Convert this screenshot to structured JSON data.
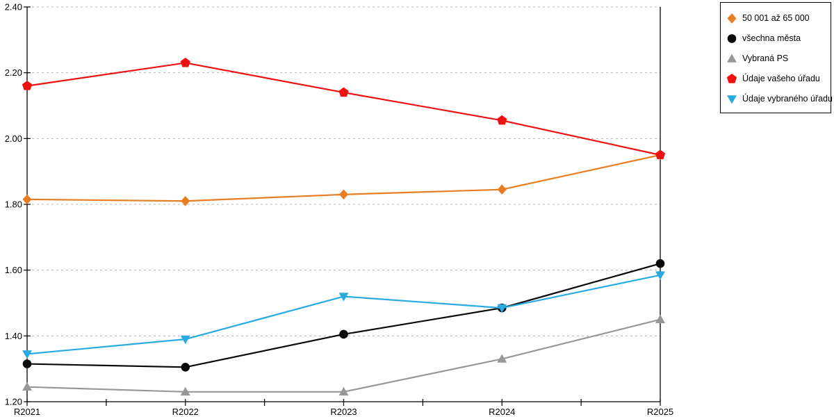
{
  "chart_data": {
    "type": "line",
    "title": "",
    "xlabel": "",
    "ylabel": "",
    "categories": [
      "R2021",
      "R2022",
      "R2023",
      "R2024",
      "R2025"
    ],
    "series": [
      {
        "name": "50 001 až 65 000",
        "marker": "diamond",
        "color": "#E87D22",
        "values": [
          1.815,
          1.81,
          1.83,
          1.845,
          1.95
        ]
      },
      {
        "name": "všechna města",
        "marker": "circle",
        "color": "#0a0a0a",
        "values": [
          1.315,
          1.305,
          1.405,
          1.485,
          1.62
        ]
      },
      {
        "name": "Vybraná PS",
        "marker": "triangle-up",
        "color": "#979797",
        "values": [
          1.245,
          1.23,
          1.23,
          1.33,
          1.45
        ]
      },
      {
        "name": "Údaje vašeho úřadu",
        "marker": "pentagon",
        "color": "#EE1111",
        "values": [
          2.16,
          2.23,
          2.14,
          2.055,
          1.95
        ]
      },
      {
        "name": "Údaje vybraného úřadu",
        "marker": "triangle-down",
        "color": "#29ABE2",
        "values": [
          1.345,
          1.39,
          1.52,
          1.485,
          1.585
        ]
      }
    ],
    "ylim": [
      1.2,
      2.4
    ],
    "ytick_labels": [
      "1.20",
      "1.40",
      "1.60",
      "1.80",
      "2.00",
      "2.20",
      "2.40"
    ],
    "ytick_values": [
      1.2,
      1.4,
      1.6,
      1.8,
      2.0,
      2.2,
      2.4
    ],
    "grid": "horizontal-dashed",
    "grid_color": "#b3b3b3",
    "axis_color": "#000000",
    "x_minor_ticks": "midpoints",
    "legend_position": "outside-top-right"
  }
}
